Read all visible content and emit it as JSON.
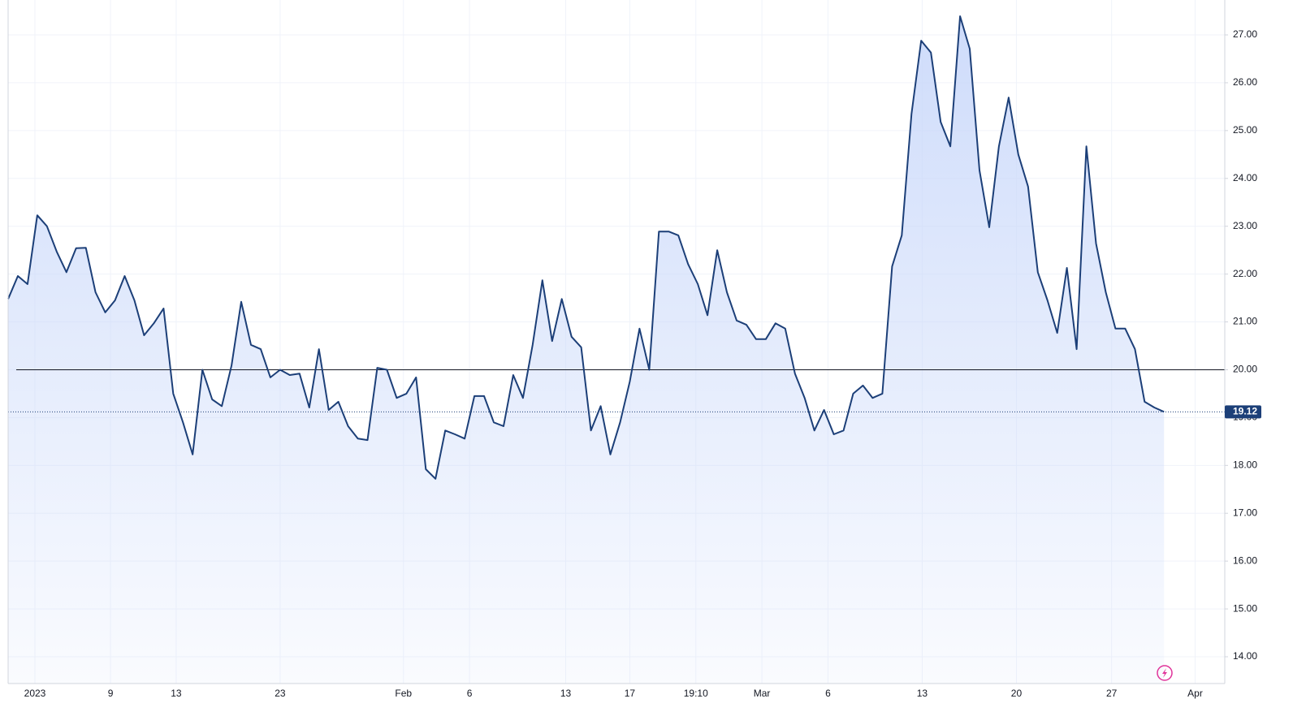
{
  "chart_data": {
    "type": "area",
    "series": [
      {
        "color": "#1c3f78",
        "values": [
          21.48,
          21.96,
          21.79,
          23.23,
          23.0,
          22.47,
          22.04,
          22.54,
          22.55,
          21.62,
          21.2,
          21.45,
          21.96,
          21.45,
          20.72,
          20.97,
          21.28,
          19.5,
          18.9,
          18.23,
          20.0,
          19.38,
          19.24,
          20.09,
          21.42,
          20.52,
          20.43,
          19.84,
          20.0,
          19.89,
          19.92,
          19.21,
          20.43,
          19.16,
          19.33,
          18.82,
          18.56,
          18.53,
          20.04,
          20.0,
          19.41,
          19.5,
          19.84,
          17.92,
          17.72,
          18.73,
          18.65,
          18.56,
          19.45,
          19.45,
          18.9,
          18.82,
          19.89,
          19.41,
          20.52,
          21.87,
          20.6,
          21.48,
          20.69,
          20.47,
          18.73,
          19.24,
          18.23,
          18.9,
          19.75,
          20.86,
          20.0,
          22.89,
          22.89,
          22.81,
          22.21,
          21.79,
          21.14,
          22.5,
          21.62,
          21.03,
          20.94,
          20.64,
          20.64,
          20.97,
          20.86,
          19.92,
          19.41,
          18.73,
          19.16,
          18.65,
          18.73,
          19.5,
          19.67,
          19.41,
          19.5,
          22.16,
          22.81,
          25.35,
          26.88,
          26.63,
          25.18,
          24.67,
          27.39,
          26.71,
          24.17,
          22.98,
          24.67,
          25.69,
          24.5,
          23.83,
          22.04,
          21.45,
          20.77,
          22.13,
          20.43,
          24.67,
          22.64,
          21.62,
          20.86,
          20.86,
          20.43,
          19.33,
          19.21,
          19.12
        ]
      }
    ],
    "reference_line": 20,
    "xlim": [
      0,
      125.25
    ],
    "xticks": [
      {
        "value": 2.76,
        "label": "2023"
      },
      {
        "value": 10.54,
        "label": "9"
      },
      {
        "value": 17.3,
        "label": "13"
      },
      {
        "value": 28.0,
        "label": "23"
      },
      {
        "value": 40.7,
        "label": "Feb"
      },
      {
        "value": 47.5,
        "label": "6"
      },
      {
        "value": 57.4,
        "label": "13"
      },
      {
        "value": 64.0,
        "label": "17"
      },
      {
        "value": 70.8,
        "label": "19:10"
      },
      {
        "value": 77.6,
        "label": "Mar"
      },
      {
        "value": 84.4,
        "label": "6"
      },
      {
        "value": 94.1,
        "label": "13"
      },
      {
        "value": 103.8,
        "label": "20"
      },
      {
        "value": 113.6,
        "label": "27"
      },
      {
        "value": 122.2,
        "label": "Apr"
      }
    ],
    "ylim": [
      13.44,
      27.73
    ],
    "yticks": [
      {
        "value": 14,
        "label": "14.00"
      },
      {
        "value": 15,
        "label": "15.00"
      },
      {
        "value": 16,
        "label": "16.00"
      },
      {
        "value": 17,
        "label": "17.00"
      },
      {
        "value": 18,
        "label": "18.00"
      },
      {
        "value": 19,
        "label": "19.00"
      },
      {
        "value": 20,
        "label": "20.00"
      },
      {
        "value": 21,
        "label": "21.00"
      },
      {
        "value": 22,
        "label": "22.00"
      },
      {
        "value": 23,
        "label": "23.00"
      },
      {
        "value": 24,
        "label": "24.00"
      },
      {
        "value": 25,
        "label": "25.00"
      },
      {
        "value": 26,
        "label": "26.00"
      },
      {
        "value": 27,
        "label": "27.00"
      }
    ],
    "grid": true
  }
}
